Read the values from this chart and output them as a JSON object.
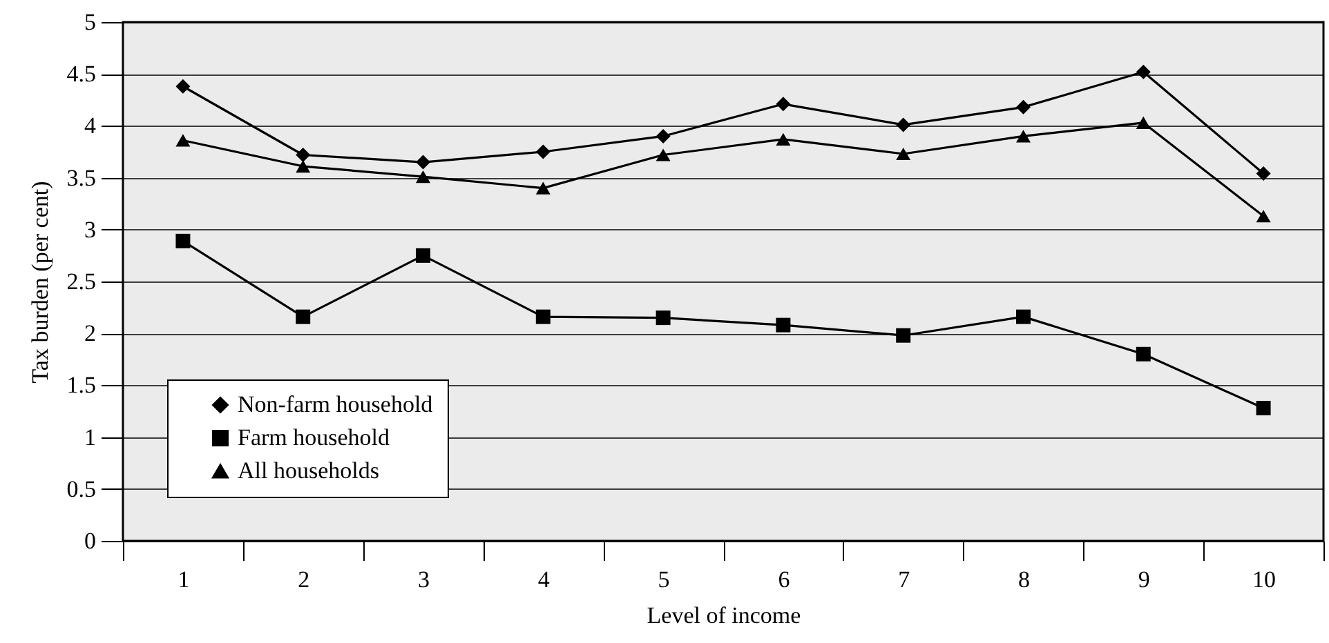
{
  "chart_data": {
    "type": "line",
    "xlabel": "Level of income",
    "ylabel": "Tax burden (per cent)",
    "categories": [
      "1",
      "2",
      "3",
      "4",
      "5",
      "6",
      "7",
      "8",
      "9",
      "10"
    ],
    "series": [
      {
        "name": "Non-farm household",
        "color": "#000000",
        "marker": "diamond",
        "values": [
          4.38,
          3.72,
          3.65,
          3.75,
          3.9,
          4.21,
          4.01,
          4.18,
          4.52,
          3.54
        ]
      },
      {
        "name": "Farm household",
        "color": "#000000",
        "marker": "square",
        "values": [
          2.89,
          2.16,
          2.75,
          2.16,
          2.15,
          2.08,
          1.98,
          2.16,
          1.8,
          1.28
        ]
      },
      {
        "name": "All households",
        "color": "#000000",
        "marker": "triangle",
        "values": [
          3.86,
          3.61,
          3.51,
          3.4,
          3.72,
          3.87,
          3.73,
          3.9,
          4.03,
          3.13
        ]
      }
    ],
    "ylim": [
      0,
      5
    ],
    "yticks": [
      0,
      0.5,
      1,
      1.5,
      2,
      2.5,
      3,
      3.5,
      4,
      4.5,
      5
    ],
    "grid": "y",
    "legend": "bottom left",
    "line_style": "solid"
  }
}
